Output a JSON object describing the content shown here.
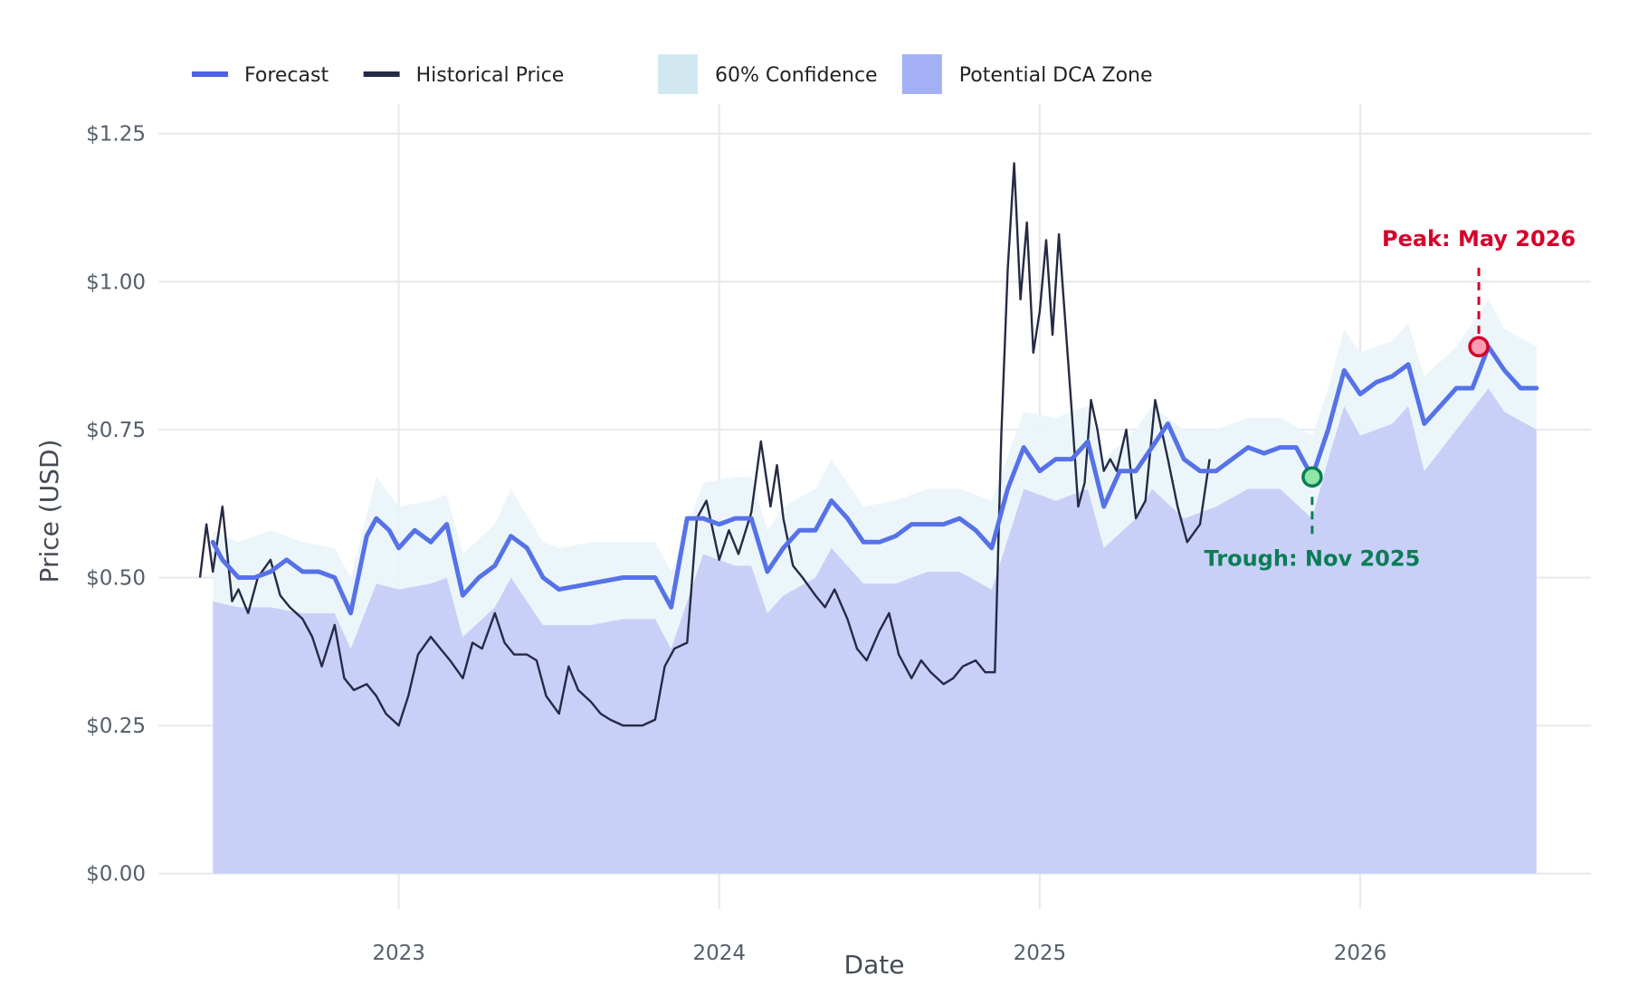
{
  "chart_data": {
    "type": "line",
    "xlabel": "Date",
    "ylabel": "Price (USD)",
    "xlim": [
      2022.25,
      2026.72
    ],
    "ylim": [
      -0.06,
      1.3
    ],
    "x_ticks": [
      {
        "value": 2023.0,
        "label": "2023"
      },
      {
        "value": 2024.0,
        "label": "2024"
      },
      {
        "value": 2025.0,
        "label": "2025"
      },
      {
        "value": 2026.0,
        "label": "2026"
      }
    ],
    "y_ticks": [
      {
        "value": 0.0,
        "label": "$0.00"
      },
      {
        "value": 0.25,
        "label": "$0.25"
      },
      {
        "value": 0.5,
        "label": "$0.50"
      },
      {
        "value": 0.75,
        "label": "$0.75"
      },
      {
        "value": 1.0,
        "label": "$1.00"
      },
      {
        "value": 1.25,
        "label": "$1.25"
      }
    ],
    "grid": true,
    "legend": {
      "position": "top-left",
      "items": [
        {
          "label": "Forecast",
          "type": "line",
          "color": "#4f63e6"
        },
        {
          "label": "Historical Price",
          "type": "line",
          "color": "#252a45"
        },
        {
          "label": "60% Confidence",
          "type": "area",
          "color": "#d2e8f1"
        },
        {
          "label": "Potential DCA Zone",
          "type": "area",
          "color": "#a3b0f5"
        }
      ]
    },
    "colors": {
      "forecast": "#5672e8",
      "historical": "#252a45",
      "confidence": "#e9f5f9",
      "dca_zone": "#c6cef8",
      "peak": "#d6002a",
      "trough": "#0a7d56",
      "grid": "#e8e8ee"
    },
    "series": [
      {
        "name": "Historical Price",
        "role": "historical",
        "x": [
          2022.38,
          2022.4,
          2022.42,
          2022.45,
          2022.48,
          2022.5,
          2022.53,
          2022.56,
          2022.6,
          2022.63,
          2022.66,
          2022.7,
          2022.73,
          2022.76,
          2022.8,
          2022.83,
          2022.86,
          2022.9,
          2022.93,
          2022.96,
          2023.0,
          2023.03,
          2023.06,
          2023.1,
          2023.13,
          2023.16,
          2023.2,
          2023.23,
          2023.26,
          2023.3,
          2023.33,
          2023.36,
          2023.4,
          2023.43,
          2023.46,
          2023.5,
          2023.53,
          2023.56,
          2023.6,
          2023.63,
          2023.66,
          2023.7,
          2023.73,
          2023.76,
          2023.8,
          2023.83,
          2023.86,
          2023.9,
          2023.93,
          2023.96,
          2024.0,
          2024.03,
          2024.06,
          2024.1,
          2024.13,
          2024.16,
          2024.18,
          2024.2,
          2024.23,
          2024.26,
          2024.3,
          2024.33,
          2024.36,
          2024.4,
          2024.43,
          2024.46,
          2024.5,
          2024.53,
          2024.56,
          2024.6,
          2024.63,
          2024.66,
          2024.7,
          2024.73,
          2024.76,
          2024.8,
          2024.83,
          2024.86,
          2024.88,
          2024.9,
          2024.92,
          2024.94,
          2024.96,
          2024.98,
          2025.0,
          2025.02,
          2025.04,
          2025.06,
          2025.08,
          2025.1,
          2025.12,
          2025.14,
          2025.16,
          2025.18,
          2025.2,
          2025.22,
          2025.24,
          2025.27,
          2025.3,
          2025.33,
          2025.36,
          2025.4,
          2025.43,
          2025.46,
          2025.5,
          2025.53
        ],
        "y": [
          0.5,
          0.59,
          0.51,
          0.62,
          0.46,
          0.48,
          0.44,
          0.5,
          0.53,
          0.47,
          0.45,
          0.43,
          0.4,
          0.35,
          0.42,
          0.33,
          0.31,
          0.32,
          0.3,
          0.27,
          0.25,
          0.3,
          0.37,
          0.4,
          0.38,
          0.36,
          0.33,
          0.39,
          0.38,
          0.44,
          0.39,
          0.37,
          0.37,
          0.36,
          0.3,
          0.27,
          0.35,
          0.31,
          0.29,
          0.27,
          0.26,
          0.25,
          0.25,
          0.25,
          0.26,
          0.35,
          0.38,
          0.39,
          0.6,
          0.63,
          0.53,
          0.58,
          0.54,
          0.61,
          0.73,
          0.62,
          0.69,
          0.6,
          0.52,
          0.5,
          0.47,
          0.45,
          0.48,
          0.43,
          0.38,
          0.36,
          0.41,
          0.44,
          0.37,
          0.33,
          0.36,
          0.34,
          0.32,
          0.33,
          0.35,
          0.36,
          0.34,
          0.34,
          0.74,
          1.02,
          1.2,
          0.97,
          1.1,
          0.88,
          0.95,
          1.07,
          0.91,
          1.08,
          0.93,
          0.78,
          0.62,
          0.66,
          0.8,
          0.75,
          0.68,
          0.7,
          0.68,
          0.75,
          0.6,
          0.63,
          0.8,
          0.7,
          0.62,
          0.56,
          0.59,
          0.7
        ]
      },
      {
        "name": "Forecast",
        "role": "forecast",
        "x": [
          2022.42,
          2022.45,
          2022.5,
          2022.55,
          2022.6,
          2022.65,
          2022.7,
          2022.75,
          2022.8,
          2022.85,
          2022.9,
          2022.93,
          2022.97,
          2023.0,
          2023.05,
          2023.1,
          2023.15,
          2023.2,
          2023.25,
          2023.3,
          2023.35,
          2023.4,
          2023.45,
          2023.5,
          2023.6,
          2023.7,
          2023.75,
          2023.8,
          2023.85,
          2023.9,
          2023.95,
          2024.0,
          2024.05,
          2024.1,
          2024.15,
          2024.2,
          2024.25,
          2024.3,
          2024.35,
          2024.4,
          2024.45,
          2024.5,
          2024.55,
          2024.6,
          2024.65,
          2024.7,
          2024.75,
          2024.8,
          2024.85,
          2024.9,
          2024.95,
          2025.0,
          2025.05,
          2025.1,
          2025.15,
          2025.2,
          2025.25,
          2025.3,
          2025.35,
          2025.4,
          2025.45,
          2025.5,
          2025.55,
          2025.6,
          2025.65,
          2025.7,
          2025.75,
          2025.8,
          2025.85,
          2025.9,
          2025.95,
          2026.0,
          2026.05,
          2026.1,
          2026.15,
          2026.2,
          2026.25,
          2026.3,
          2026.35,
          2026.4,
          2026.45,
          2026.5,
          2026.55
        ],
        "y": [
          0.56,
          0.53,
          0.5,
          0.5,
          0.51,
          0.53,
          0.51,
          0.51,
          0.5,
          0.44,
          0.57,
          0.6,
          0.58,
          0.55,
          0.58,
          0.56,
          0.59,
          0.47,
          0.5,
          0.52,
          0.57,
          0.55,
          0.5,
          0.48,
          0.49,
          0.5,
          0.5,
          0.5,
          0.45,
          0.6,
          0.6,
          0.59,
          0.6,
          0.6,
          0.51,
          0.55,
          0.58,
          0.58,
          0.63,
          0.6,
          0.56,
          0.56,
          0.57,
          0.59,
          0.59,
          0.59,
          0.6,
          0.58,
          0.55,
          0.65,
          0.72,
          0.68,
          0.7,
          0.7,
          0.73,
          0.62,
          0.68,
          0.68,
          0.72,
          0.76,
          0.7,
          0.68,
          0.68,
          0.7,
          0.72,
          0.71,
          0.72,
          0.72,
          0.67,
          0.75,
          0.85,
          0.81,
          0.83,
          0.84,
          0.86,
          0.76,
          0.79,
          0.82,
          0.82,
          0.89,
          0.85,
          0.82,
          0.82
        ]
      },
      {
        "name": "60% Confidence",
        "role": "confidence",
        "x": [
          2022.42,
          2022.5,
          2022.6,
          2022.7,
          2022.8,
          2022.85,
          2022.93,
          2023.0,
          2023.1,
          2023.15,
          2023.2,
          2023.3,
          2023.35,
          2023.45,
          2023.5,
          2023.6,
          2023.7,
          2023.8,
          2023.85,
          2023.95,
          2024.05,
          2024.1,
          2024.15,
          2024.2,
          2024.3,
          2024.35,
          2024.45,
          2024.55,
          2024.65,
          2024.75,
          2024.85,
          2024.95,
          2025.05,
          2025.15,
          2025.2,
          2025.3,
          2025.35,
          2025.45,
          2025.55,
          2025.65,
          2025.75,
          2025.85,
          2025.9,
          2025.95,
          2026.0,
          2026.1,
          2026.15,
          2026.2,
          2026.3,
          2026.4,
          2026.45,
          2026.55
        ],
        "upper": [
          0.58,
          0.56,
          0.58,
          0.56,
          0.55,
          0.5,
          0.67,
          0.62,
          0.63,
          0.64,
          0.54,
          0.59,
          0.65,
          0.56,
          0.55,
          0.56,
          0.56,
          0.56,
          0.51,
          0.66,
          0.67,
          0.67,
          0.58,
          0.62,
          0.65,
          0.7,
          0.62,
          0.63,
          0.65,
          0.65,
          0.63,
          0.78,
          0.77,
          0.79,
          0.7,
          0.75,
          0.79,
          0.75,
          0.75,
          0.77,
          0.77,
          0.74,
          0.82,
          0.92,
          0.88,
          0.9,
          0.93,
          0.84,
          0.89,
          0.97,
          0.92,
          0.89
        ],
        "lower": [
          0.46,
          0.45,
          0.45,
          0.44,
          0.44,
          0.38,
          0.49,
          0.48,
          0.49,
          0.5,
          0.4,
          0.45,
          0.5,
          0.42,
          0.42,
          0.42,
          0.43,
          0.43,
          0.38,
          0.54,
          0.52,
          0.52,
          0.44,
          0.47,
          0.5,
          0.55,
          0.49,
          0.49,
          0.51,
          0.51,
          0.48,
          0.65,
          0.63,
          0.65,
          0.55,
          0.6,
          0.65,
          0.6,
          0.62,
          0.65,
          0.65,
          0.6,
          0.7,
          0.79,
          0.74,
          0.76,
          0.79,
          0.68,
          0.75,
          0.82,
          0.78,
          0.75
        ]
      }
    ],
    "annotations": [
      {
        "label": "Peak: May 2026",
        "x": 2026.37,
        "y": 0.89,
        "label_y": 1.06,
        "color": "#d6002a"
      },
      {
        "label": "Trough: Nov 2025",
        "x": 2025.85,
        "y": 0.67,
        "label_y": 0.52,
        "color": "#0a7d56"
      }
    ]
  }
}
